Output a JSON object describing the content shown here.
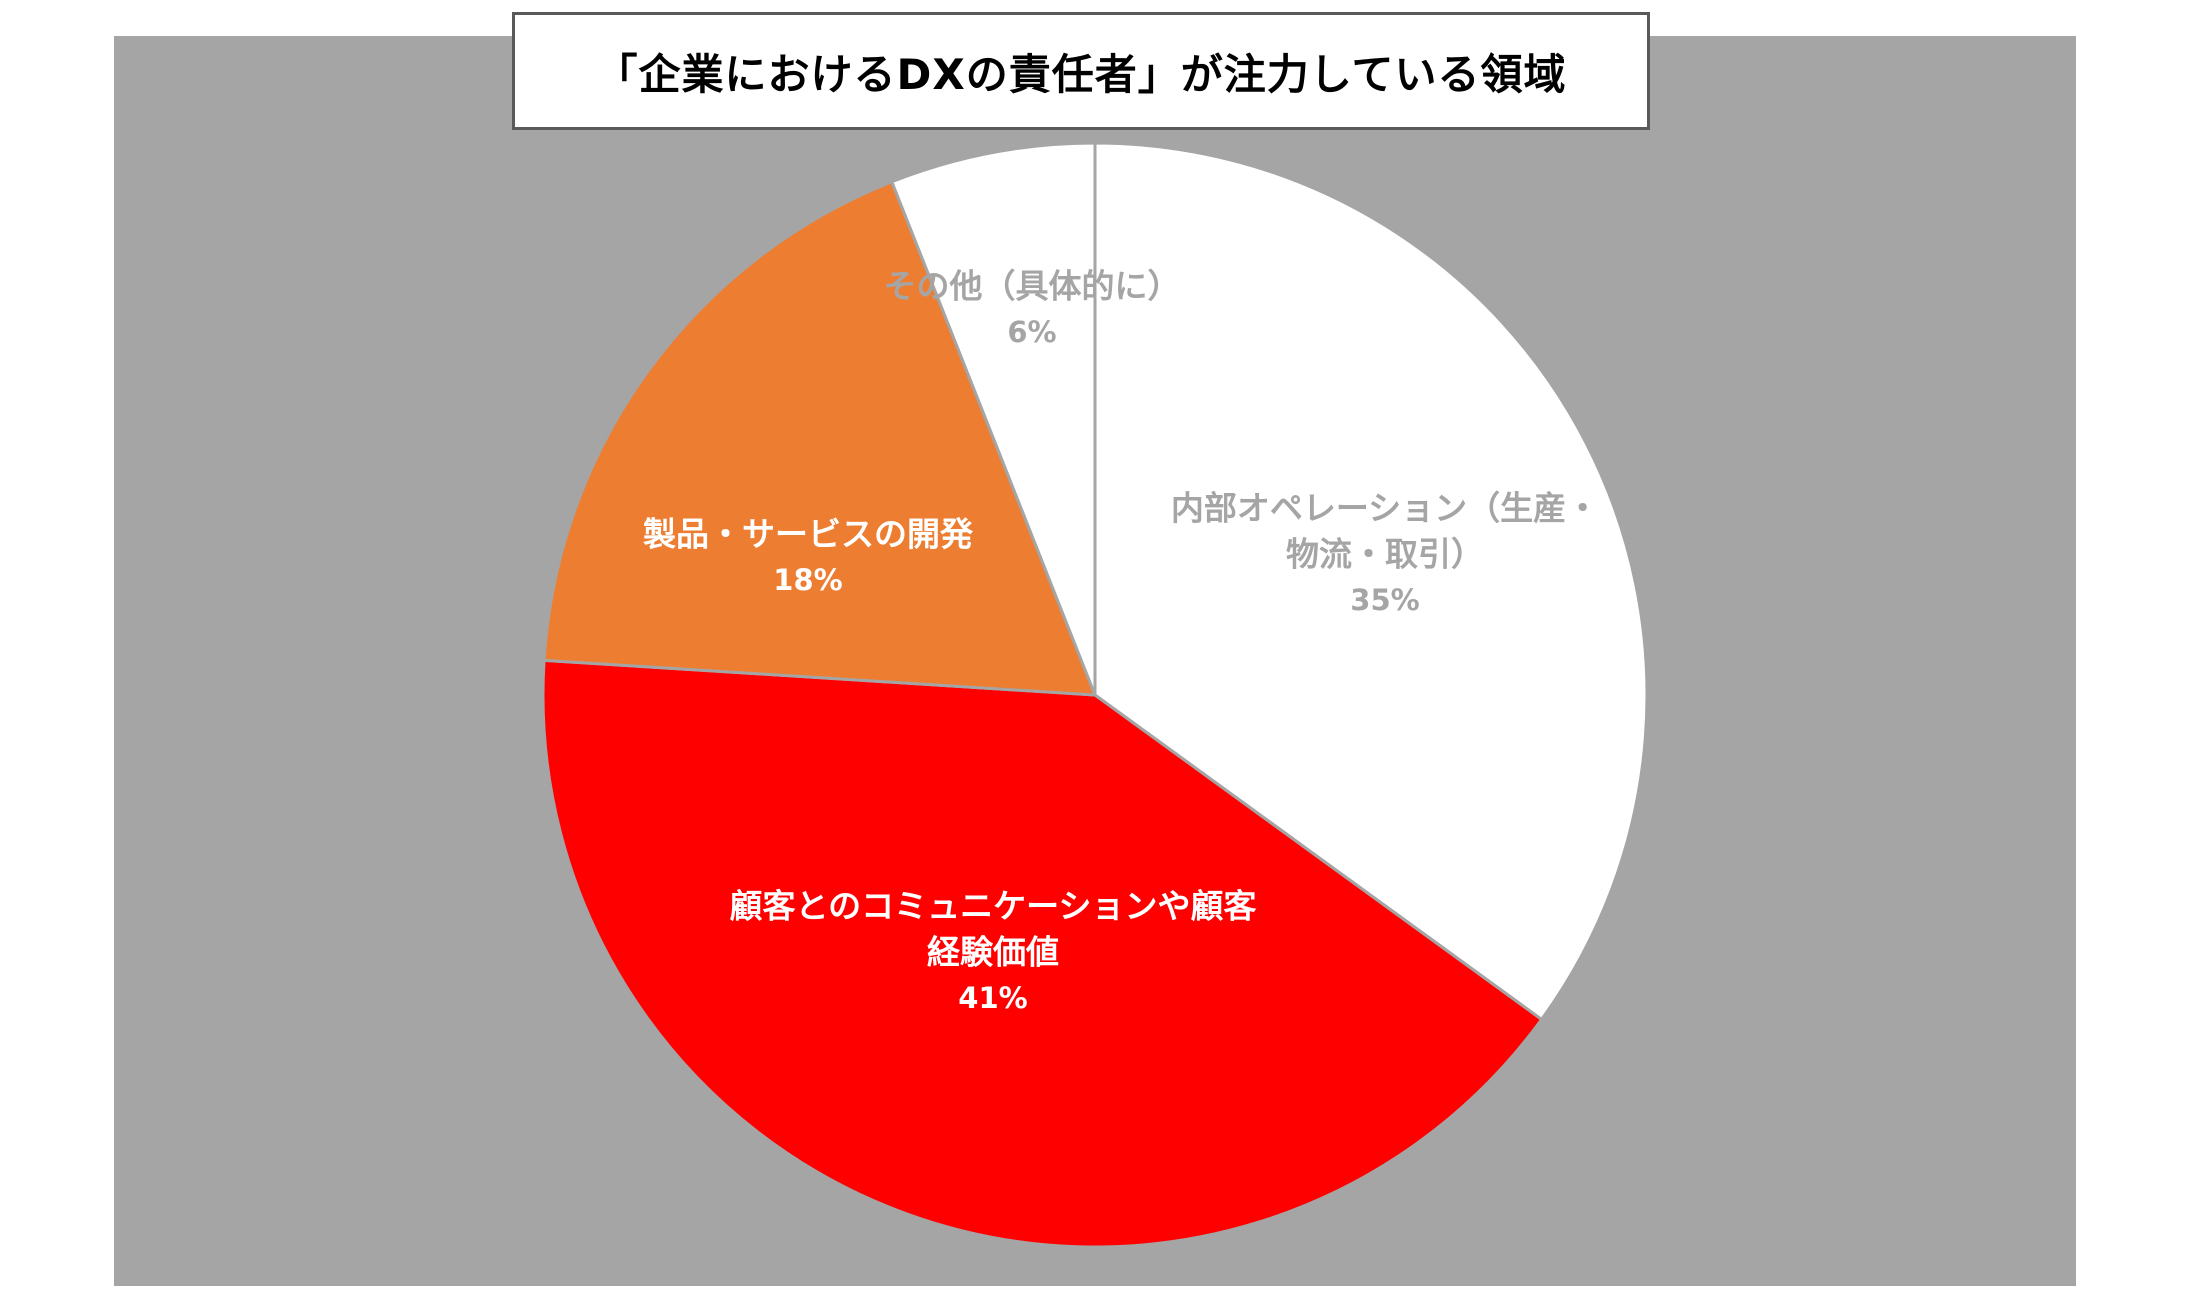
{
  "chart_data": {
    "type": "pie",
    "title": "「企業におけるDXの責任者」が注力している領域",
    "slices": [
      {
        "label_lines": [
          "内部オペレーション（生産・",
          "物流・取引）"
        ],
        "value": 35,
        "value_label": "35%",
        "color": "#ffffff",
        "label_color": "#a5a5a5"
      },
      {
        "label_lines": [
          "顧客とのコミュニケーションや顧客",
          "経験価値"
        ],
        "value": 41,
        "value_label": "41%",
        "color": "#ff0000",
        "label_color": "#ffffff"
      },
      {
        "label_lines": [
          "製品・サービスの開発"
        ],
        "value": 18,
        "value_label": "18%",
        "color": "#ed7d31",
        "label_color": "#ffffff"
      },
      {
        "label_lines": [
          "その他（具体的に）"
        ],
        "value": 6,
        "value_label": "6%",
        "color": "#ffffff",
        "label_color": "#a5a5a5"
      }
    ],
    "start_angle": "12 o'clock",
    "direction": "clockwise",
    "plot_background": "#a5a5a5",
    "slice_border_color": "#a5a5a5"
  }
}
